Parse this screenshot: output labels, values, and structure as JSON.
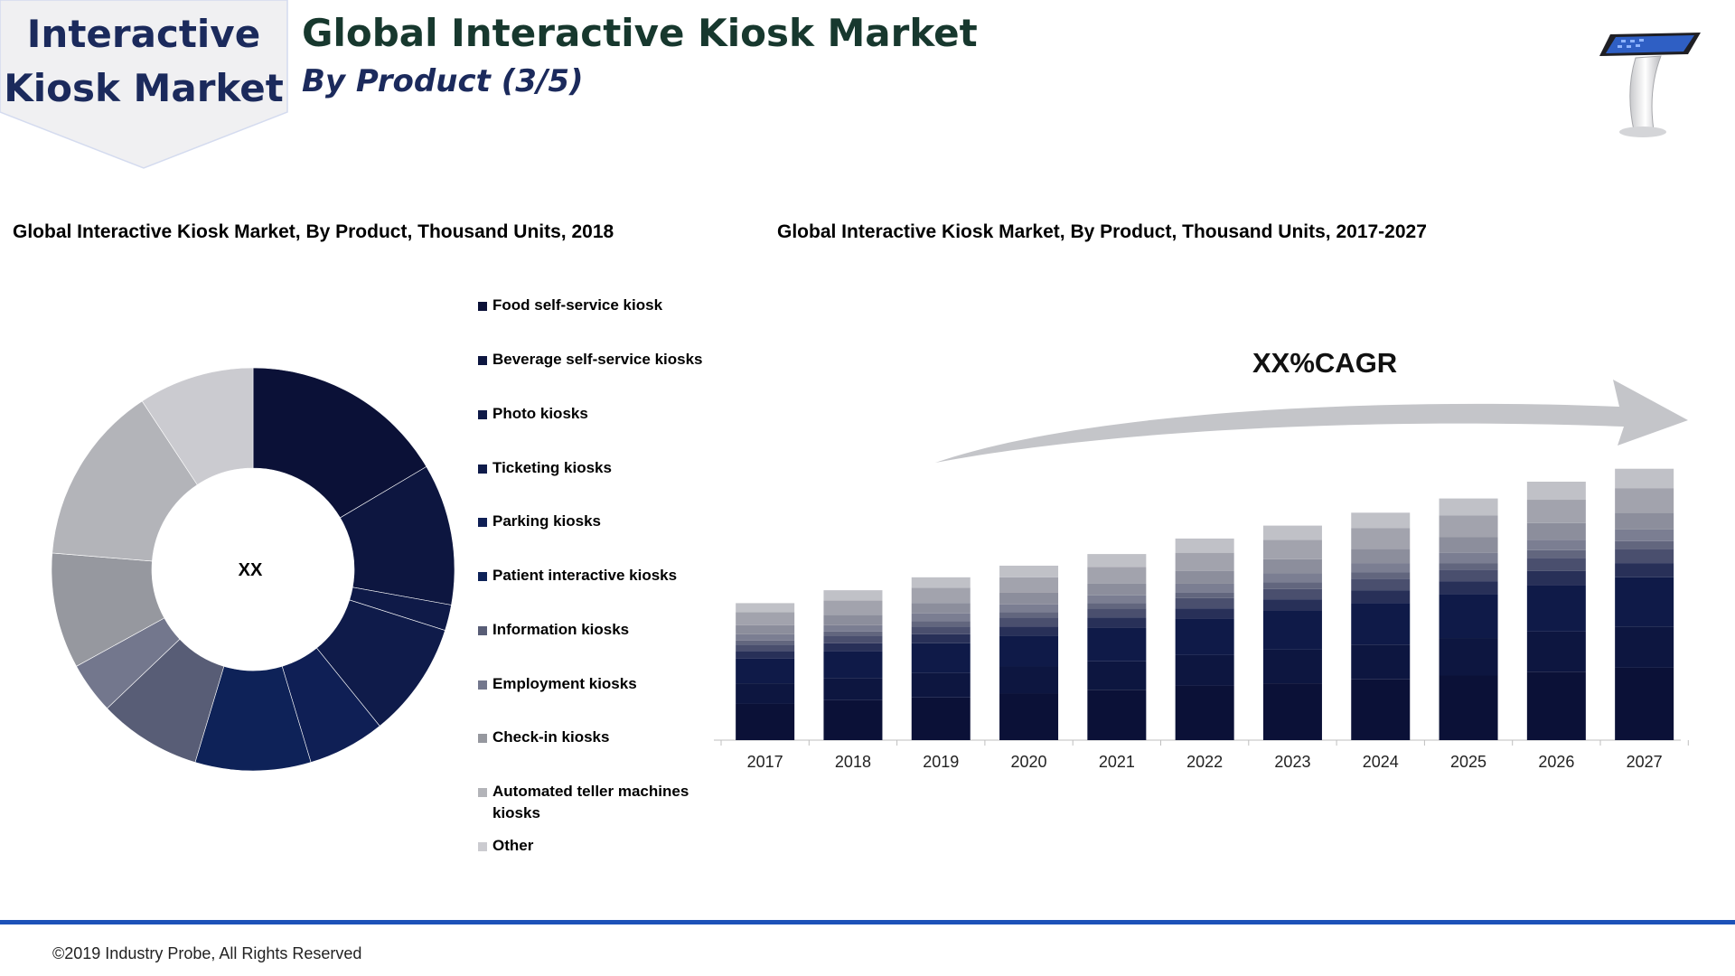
{
  "header": {
    "badge_line1": "Interactive",
    "badge_line2": "Kiosk Market",
    "title": "Global Interactive Kiosk Market",
    "subtitle": "By Product (3/5)"
  },
  "colors": {
    "badge_fill": "#f0f0f2",
    "badge_text": "#1b2a5c",
    "title_text": "#17382e",
    "footer_rule": "#1d52b8"
  },
  "chart_data": [
    {
      "type": "pie",
      "title": "Global Interactive Kiosk Market, By Product, Thousand Units, 2018",
      "center_label": "XX",
      "categories": [
        "Food self-service kiosk",
        "Beverage self-service kiosks",
        "Photo kiosks",
        "Ticketing kiosks",
        "Parking kiosks",
        "Patient interactive kiosks",
        "Information kiosks",
        "Employment kiosks",
        "Check-in kiosks",
        "Automated teller machines kiosks",
        "Other"
      ],
      "values": [
        16,
        11,
        2,
        9,
        6,
        9,
        8,
        4,
        9,
        14,
        9
      ],
      "colors": [
        "#0b1137",
        "#0d1640",
        "#0f1a48",
        "#0f1b4a",
        "#0f1f55",
        "#0e2258",
        "#585d76",
        "#73778d",
        "#96989f",
        "#b3b4b9",
        "#cbcbd0"
      ],
      "legend": "right"
    },
    {
      "type": "bar",
      "stacked": true,
      "title": "Global Interactive Kiosk Market, By Product, Thousand Units, 2017-2027",
      "annotation": "XX%CAGR",
      "categories": [
        "2017",
        "2018",
        "2019",
        "2020",
        "2021",
        "2022",
        "2023",
        "2024",
        "2025",
        "2026",
        "2027"
      ],
      "series": [
        {
          "color": "#0b1137",
          "values": [
            28,
            31,
            33,
            36,
            39,
            42,
            44,
            47,
            50,
            53,
            56
          ]
        },
        {
          "color": "#0d1640",
          "values": [
            16,
            17,
            19,
            21,
            22,
            24,
            26,
            27,
            29,
            31,
            32
          ]
        },
        {
          "color": "#0f1a48",
          "values": [
            19,
            21,
            23,
            24,
            26,
            28,
            30,
            32,
            34,
            36,
            38
          ]
        },
        {
          "color": "#283058",
          "values": [
            6,
            6,
            7,
            7,
            8,
            8,
            9,
            10,
            10,
            11,
            11
          ]
        },
        {
          "color": "#4a4f6e",
          "values": [
            5,
            6,
            6,
            7,
            7,
            8,
            8,
            9,
            9,
            10,
            11
          ]
        },
        {
          "color": "#62667e",
          "values": [
            3,
            3,
            4,
            4,
            4,
            4,
            5,
            5,
            5,
            6,
            6
          ]
        },
        {
          "color": "#7b7e92",
          "values": [
            5,
            5,
            6,
            6,
            6,
            7,
            7,
            7,
            8,
            8,
            9
          ]
        },
        {
          "color": "#8c8e9c",
          "values": [
            7,
            8,
            8,
            9,
            9,
            10,
            11,
            11,
            12,
            13,
            13
          ]
        },
        {
          "color": "#a2a3ad",
          "values": [
            10,
            11,
            12,
            12,
            13,
            14,
            15,
            16,
            17,
            18,
            19
          ]
        },
        {
          "color": "#c0c1c7",
          "values": [
            7,
            8,
            8,
            9,
            10,
            11,
            11,
            12,
            13,
            14,
            15
          ]
        }
      ],
      "grid": false,
      "y_axis_visible": false
    }
  ],
  "footer": {
    "copyright": "©2019 Industry Probe, All Rights Reserved"
  }
}
